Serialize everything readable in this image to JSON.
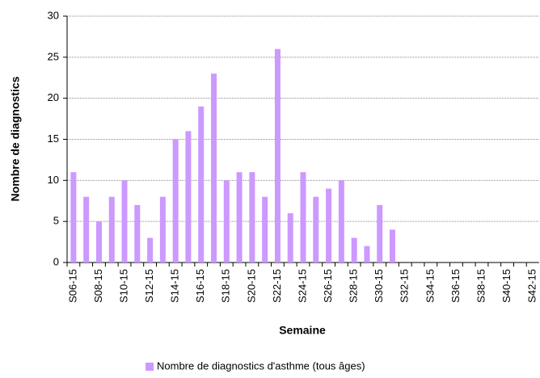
{
  "chart_data": {
    "type": "bar",
    "x_label": "Semaine",
    "y_label": "Nombre de diagnostics",
    "categories": [
      "S06-15",
      null,
      "S08-15",
      null,
      "S10-15",
      null,
      "S12-15",
      null,
      "S14-15",
      null,
      "S16-15",
      null,
      "S18-15",
      null,
      "S20-15",
      null,
      "S22-15",
      null,
      "S24-15",
      null,
      "S26-15",
      null,
      "S28-15",
      null,
      "S30-15",
      null,
      "S32-15",
      null,
      "S34-15",
      null,
      "S36-15",
      null,
      "S38-15",
      null,
      "S40-15",
      null,
      "S42-15"
    ],
    "series": [
      {
        "name": "Nombre de diagnostics d'asthme (tous âges)",
        "color": "#cc99ff",
        "values": [
          11,
          8,
          5,
          8,
          10,
          7,
          3,
          8,
          15,
          16,
          19,
          23,
          10,
          11,
          11,
          8,
          26,
          6,
          11,
          8,
          9,
          10,
          3,
          2,
          7,
          4,
          null,
          null,
          null,
          null,
          null,
          null,
          null,
          null,
          null,
          null,
          null
        ]
      }
    ],
    "ylim": [
      0,
      30
    ],
    "yticks": [
      0,
      5,
      10,
      15,
      20,
      25,
      30
    ],
    "grid": true,
    "legend": "bottom"
  }
}
